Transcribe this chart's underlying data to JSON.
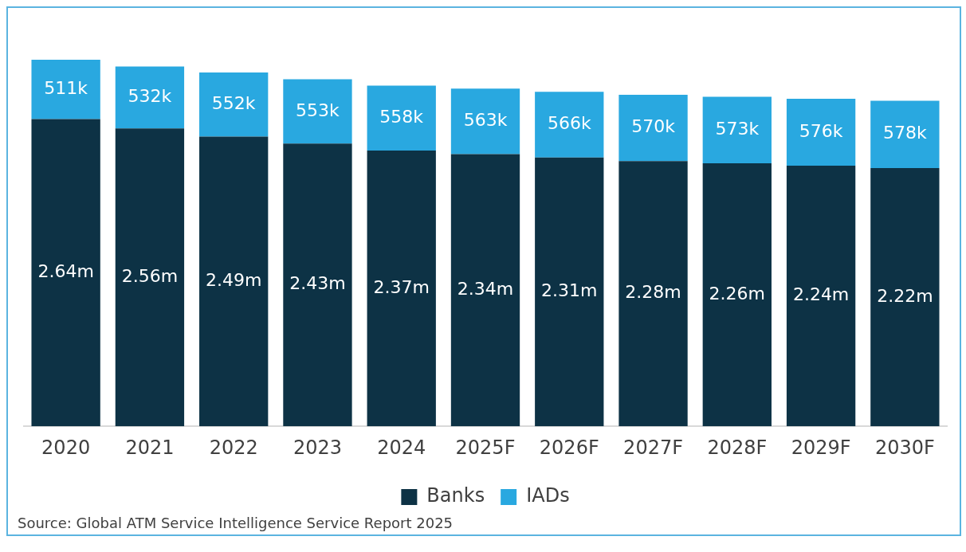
{
  "chart_data": {
    "type": "bar",
    "stacked": true,
    "categories": [
      "2020",
      "2021",
      "2022",
      "2023",
      "2024",
      "2025F",
      "2026F",
      "2027F",
      "2028F",
      "2029F",
      "2030F"
    ],
    "series": [
      {
        "name": "Banks",
        "color": "#0d3245",
        "values": [
          2640000,
          2560000,
          2490000,
          2430000,
          2370000,
          2340000,
          2310000,
          2280000,
          2260000,
          2240000,
          2220000
        ],
        "value_labels": [
          "2.64m",
          "2.56m",
          "2.49m",
          "2.43m",
          "2.37m",
          "2.34m",
          "2.31m",
          "2.28m",
          "2.26m",
          "2.24m",
          "2.22m"
        ]
      },
      {
        "name": "IADs",
        "color": "#29a8e0",
        "values": [
          511000,
          532000,
          552000,
          553000,
          558000,
          563000,
          566000,
          570000,
          573000,
          576000,
          578000
        ],
        "value_labels": [
          "511k",
          "532k",
          "552k",
          "553k",
          "558k",
          "563k",
          "566k",
          "570k",
          "573k",
          "576k",
          "578k"
        ]
      }
    ],
    "legend": "bottom",
    "annotations": [
      "Source: Global ATM Service Intelligence Service Report 2025"
    ]
  }
}
